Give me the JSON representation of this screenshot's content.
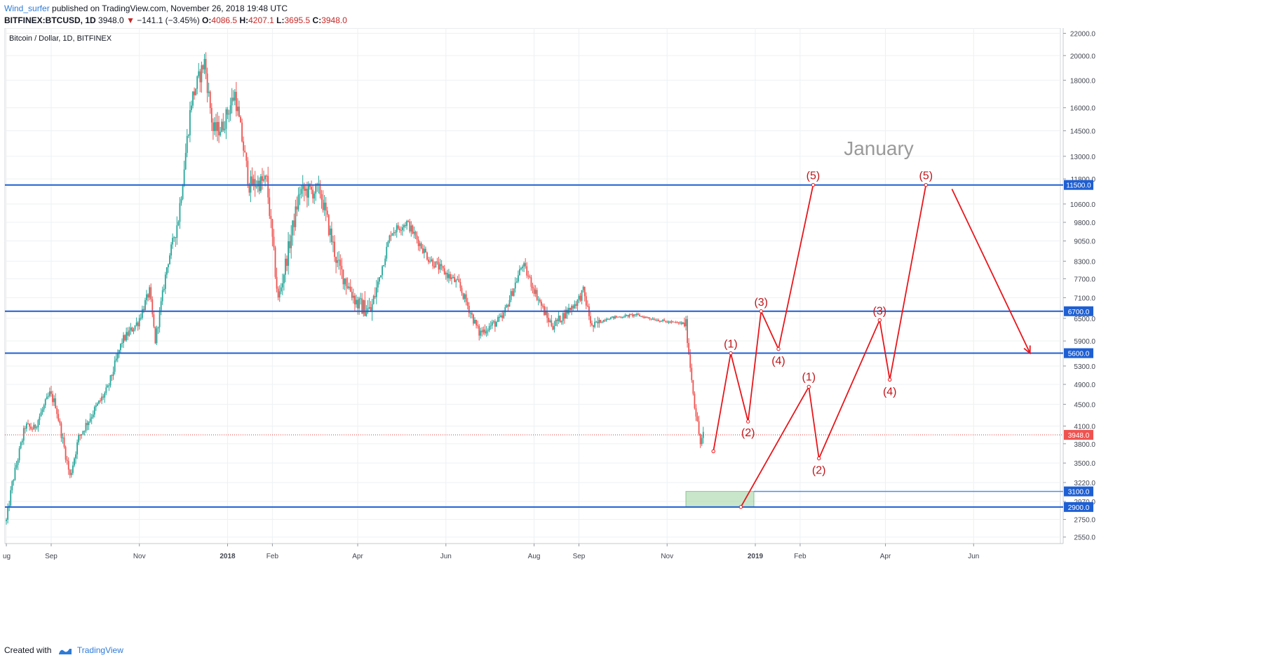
{
  "header": {
    "author": "Wind_surfer",
    "published_text": "published on TradingView.com, November 26, 2018 19:48 UTC",
    "symbol": "BITFINEX:BTCUSD, 1D",
    "last": "3948.0",
    "change": "−141.1 (−3.45%)",
    "o_label": "O:",
    "o_value": "4086.5",
    "h_label": "H:",
    "h_value": "4207.1",
    "l_label": "L:",
    "l_value": "3695.5",
    "c_label": "C:",
    "c_value": "3948.0"
  },
  "footer": {
    "created_with": "Created with",
    "brand": "TradingView"
  },
  "colors": {
    "up": "#26a69a",
    "down": "#ef5350",
    "level": "#1e5fd3",
    "projection": "#e8161b",
    "price_line": "#e53935",
    "target_box": "#a5d6a7"
  },
  "chart_data": {
    "type": "candlestick",
    "title": "Bitcoin / Dollar, 1D, BITFINEX",
    "scale": "log",
    "ylim": [
      2480,
      22500
    ],
    "y_ticks": [
      22000,
      20000,
      18000,
      16000,
      14500,
      13000,
      11800,
      10600,
      9800,
      9050,
      8300,
      7700,
      7100,
      6500,
      5900,
      5300,
      4900,
      4500,
      4100,
      3800,
      3500,
      3220,
      2970,
      2750,
      2550
    ],
    "x_ticks": [
      "ug",
      "Sep",
      "Nov",
      "2018",
      "Feb",
      "Apr",
      "Jun",
      "Aug",
      "Sep",
      "Nov",
      "2019",
      "Feb",
      "Apr",
      "Jun"
    ],
    "x_tick_dates": [
      "2017-08-01",
      "2017-09-01",
      "2017-11-01",
      "2018-01-01",
      "2018-02-01",
      "2018-04-01",
      "2018-06-01",
      "2018-08-01",
      "2018-09-01",
      "2018-11-01",
      "2019-01-01",
      "2019-02-01",
      "2019-04-01",
      "2019-06-01"
    ],
    "x_range": [
      "2017-07-31",
      "2019-07-31"
    ],
    "last_price": 3948.0,
    "price_path": [
      [
        "2017-08-01",
        2730
      ],
      [
        "2017-08-05",
        3200
      ],
      [
        "2017-08-14",
        4100
      ],
      [
        "2017-08-20",
        4050
      ],
      [
        "2017-08-31",
        4700
      ],
      [
        "2017-09-04",
        4500
      ],
      [
        "2017-09-14",
        3300
      ],
      [
        "2017-09-20",
        3900
      ],
      [
        "2017-09-30",
        4350
      ],
      [
        "2017-10-10",
        4800
      ],
      [
        "2017-10-20",
        5900
      ],
      [
        "2017-10-31",
        6400
      ],
      [
        "2017-11-08",
        7300
      ],
      [
        "2017-11-12",
        5900
      ],
      [
        "2017-11-20",
        8100
      ],
      [
        "2017-11-28",
        10000
      ],
      [
        "2017-12-07",
        16500
      ],
      [
        "2017-12-16",
        19500
      ],
      [
        "2017-12-22",
        14500
      ],
      [
        "2017-12-28",
        14700
      ],
      [
        "2018-01-06",
        17000
      ],
      [
        "2018-01-16",
        11500
      ],
      [
        "2018-01-28",
        11700
      ],
      [
        "2018-02-05",
        7000
      ],
      [
        "2018-02-20",
        11200
      ],
      [
        "2018-03-06",
        11200
      ],
      [
        "2018-03-18",
        8200
      ],
      [
        "2018-04-01",
        6900
      ],
      [
        "2018-04-10",
        6700
      ],
      [
        "2018-04-24",
        9400
      ],
      [
        "2018-05-05",
        9800
      ],
      [
        "2018-05-20",
        8400
      ],
      [
        "2018-06-10",
        7500
      ],
      [
        "2018-06-24",
        6100
      ],
      [
        "2018-07-10",
        6500
      ],
      [
        "2018-07-24",
        8200
      ],
      [
        "2018-08-10",
        6500
      ],
      [
        "2018-08-14",
        6300
      ],
      [
        "2018-08-31",
        7000
      ],
      [
        "2018-09-04",
        7300
      ],
      [
        "2018-09-10",
        6250
      ],
      [
        "2018-09-20",
        6500
      ],
      [
        "2018-10-10",
        6600
      ],
      [
        "2018-10-15",
        6550
      ],
      [
        "2018-11-01",
        6400
      ],
      [
        "2018-11-14",
        6350
      ],
      [
        "2018-11-16",
        5600
      ],
      [
        "2018-11-20",
        4500
      ],
      [
        "2018-11-24",
        3800
      ],
      [
        "2018-11-26",
        3948
      ]
    ],
    "levels": [
      {
        "label": "11500.0",
        "value": 11500
      },
      {
        "label": "6700.0",
        "value": 6700
      },
      {
        "label": "5600.0",
        "value": 5600
      },
      {
        "label": "3100.0",
        "value": 3100
      },
      {
        "label": "2900.0",
        "value": 2900
      }
    ],
    "target_zone": {
      "x": [
        "2018-11-14",
        "2018-12-31"
      ],
      "y": [
        2900,
        3100
      ]
    },
    "annotation_text": "January",
    "wave_count_1": [
      {
        "date": "2018-12-03",
        "price": 3680,
        "label": ""
      },
      {
        "date": "2018-12-15",
        "price": 5600,
        "label": "(1)"
      },
      {
        "date": "2018-12-27",
        "price": 4180,
        "label": "(2)"
      },
      {
        "date": "2019-01-05",
        "price": 6700,
        "label": "(3)"
      },
      {
        "date": "2019-01-17",
        "price": 5700,
        "label": "(4)"
      },
      {
        "date": "2019-02-10",
        "price": 11500,
        "label": "(5)"
      }
    ],
    "wave_count_2": [
      {
        "date": "2018-12-22",
        "price": 2900,
        "label": ""
      },
      {
        "date": "2019-02-07",
        "price": 4850,
        "label": "(1)"
      },
      {
        "date": "2019-02-14",
        "price": 3570,
        "label": "(2)"
      },
      {
        "date": "2019-03-28",
        "price": 6450,
        "label": "(3)"
      },
      {
        "date": "2019-04-04",
        "price": 5000,
        "label": "(4)"
      },
      {
        "date": "2019-04-29",
        "price": 11500,
        "label": "(5)"
      }
    ],
    "final_arrow": [
      [
        "2019-05-17",
        11300
      ],
      [
        "2019-07-10",
        5600
      ]
    ]
  }
}
